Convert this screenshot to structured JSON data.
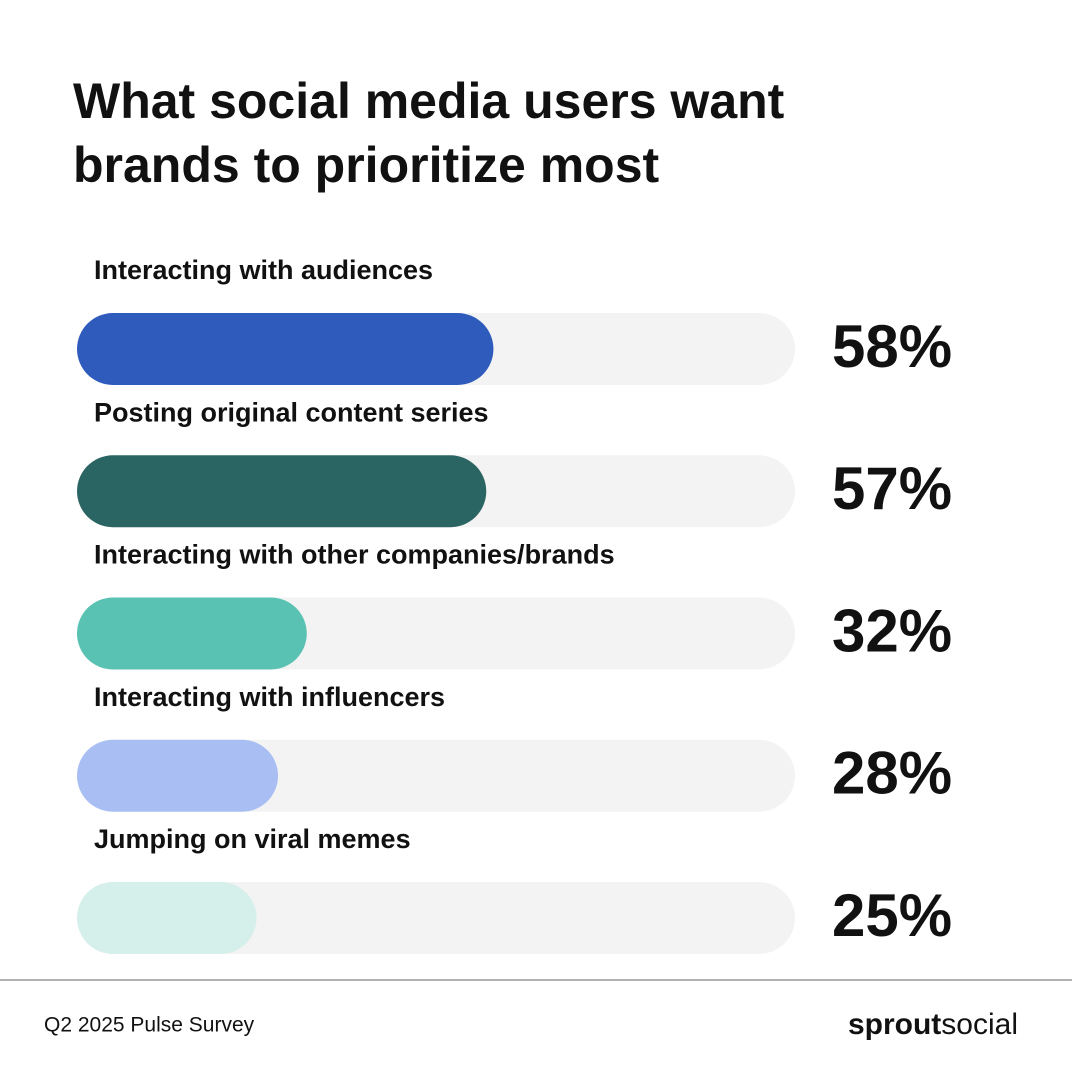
{
  "chart_data": {
    "type": "bar",
    "orientation": "horizontal",
    "title": [
      "What social media users want",
      "brands to prioritize most"
    ],
    "categories": [
      "Interacting with audiences",
      "Posting original content series",
      "Interacting with other companies/brands",
      "Interacting with influencers",
      "Jumping on viral memes"
    ],
    "values": [
      58,
      57,
      32,
      28,
      25
    ],
    "value_labels": [
      "58%",
      "57%",
      "32%",
      "28%",
      "25%"
    ],
    "colors": [
      "#2f5bbd",
      "#2b6563",
      "#59c2b2",
      "#a9bff3",
      "#d5efea"
    ],
    "track_color": "#f2f3f2",
    "xlim": [
      0,
      100
    ],
    "source": "Q2 2025 Pulse Survey",
    "logo": {
      "bold": "sprout",
      "light": "social"
    }
  }
}
